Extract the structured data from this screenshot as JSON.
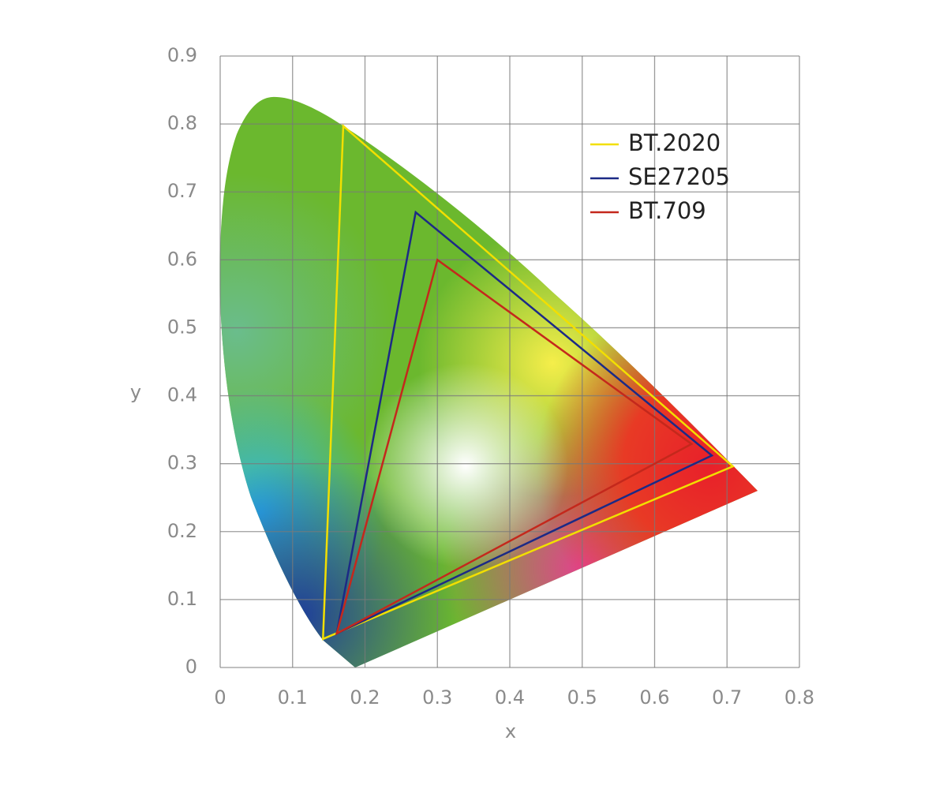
{
  "chart_data": {
    "type": "line",
    "xlabel": "x",
    "ylabel": "y",
    "xlim": [
      0,
      0.8
    ],
    "ylim": [
      0,
      0.9
    ],
    "xticks": [
      0,
      0.1,
      0.2,
      0.3,
      0.4,
      0.5,
      0.6,
      0.7,
      0.8
    ],
    "yticks": [
      0,
      0.1,
      0.2,
      0.3,
      0.4,
      0.5,
      0.6,
      0.7,
      0.8,
      0.9
    ],
    "grid": true,
    "legend": "upper right",
    "closed": true,
    "series": [
      {
        "name": "BT.2020",
        "color": "#f2df00",
        "x": [
          0.708,
          0.17,
          0.142
        ],
        "y": [
          0.296,
          0.797,
          0.042
        ]
      },
      {
        "name": "SE27205",
        "color": "#1c2a86",
        "x": [
          0.679,
          0.27,
          0.161
        ],
        "y": [
          0.312,
          0.67,
          0.05
        ]
      },
      {
        "name": "BT.709",
        "color": "#c4281c",
        "x": [
          0.651,
          0.3,
          0.161
        ],
        "y": [
          0.329,
          0.6,
          0.05
        ]
      }
    ]
  }
}
